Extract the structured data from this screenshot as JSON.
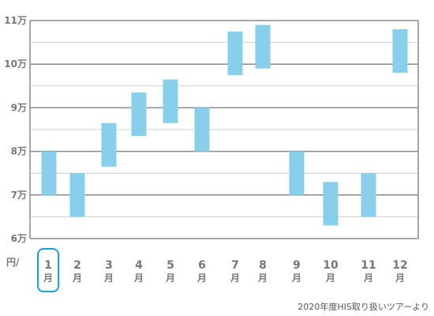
{
  "chart_data": {
    "type": "bar",
    "subtype": "floating-range",
    "y_ticks": [
      "6万",
      "7万",
      "8万",
      "9万",
      "10万",
      "11万"
    ],
    "y_unit_label": "円/",
    "ylim": [
      60000,
      110000
    ],
    "grid": true,
    "bar_color": "#87cfea",
    "highlight_color": "#1aa0d8",
    "selected_month": "1",
    "categories": [
      {
        "num": "1",
        "kanji": "月"
      },
      {
        "num": "2",
        "kanji": "月"
      },
      {
        "num": "3",
        "kanji": "月"
      },
      {
        "num": "4",
        "kanji": "月"
      },
      {
        "num": "5",
        "kanji": "月"
      },
      {
        "num": "6",
        "kanji": "月"
      },
      {
        "num": "7",
        "kanji": "月"
      },
      {
        "num": "8",
        "kanji": "月"
      },
      {
        "num": "9",
        "kanji": "月"
      },
      {
        "num": "10",
        "kanji": "月"
      },
      {
        "num": "11",
        "kanji": "月"
      },
      {
        "num": "12",
        "kanji": "月"
      }
    ],
    "ranges": [
      [
        70000,
        80000
      ],
      [
        65000,
        75000
      ],
      [
        76500,
        86500
      ],
      [
        83500,
        93500
      ],
      [
        86500,
        96500
      ],
      [
        80000,
        90000
      ],
      [
        97500,
        107500
      ],
      [
        99000,
        109000
      ],
      [
        70000,
        80000
      ],
      [
        63000,
        73000
      ],
      [
        65000,
        75000
      ],
      [
        98000,
        108000
      ]
    ]
  },
  "source": "2020年度HIS取り扱いツアーより"
}
